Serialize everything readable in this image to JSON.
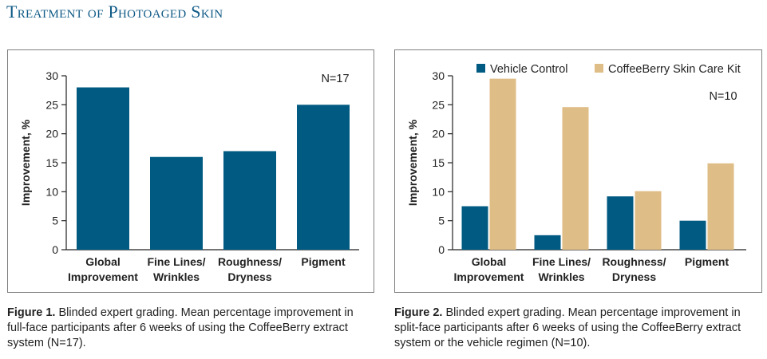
{
  "page": {
    "title": "Treatment of Photoaged Skin"
  },
  "colors": {
    "title": "#0f5a86",
    "vehicle": "#005a82",
    "coffeeberry": "#dfbd86",
    "border": "#7f7f7f"
  },
  "figure1": {
    "caption_label": "Figure 1.",
    "caption_text": " Blinded expert grading. Mean percentage improvement in full-face participants after 6 weeks of using the CoffeeBerry extract system (N=17)."
  },
  "figure2": {
    "caption_label": "Figure 2.",
    "caption_text": " Blinded expert grading. Mean percentage improvement in split-face participants after 6 weeks of using the CoffeeBerry extract system or the vehicle regimen (N=10)."
  },
  "chart_data": [
    {
      "type": "bar",
      "ylabel": "Improvement, %",
      "ylim": [
        0,
        30
      ],
      "yticks": [
        0,
        5,
        10,
        15,
        20,
        25,
        30
      ],
      "annotation": "N=17",
      "categories": [
        [
          "Global",
          "Improvement"
        ],
        [
          "Fine Lines/",
          "Wrinkles"
        ],
        [
          "Roughness/",
          "Dryness"
        ],
        [
          "Pigment"
        ]
      ],
      "series": [
        {
          "values": [
            28,
            16,
            17,
            25
          ],
          "color": "#005a82"
        }
      ],
      "legend": []
    },
    {
      "type": "bar",
      "ylabel": "Improvement, %",
      "ylim": [
        0,
        30
      ],
      "yticks": [
        0,
        5,
        10,
        15,
        20,
        25,
        30
      ],
      "annotation": "N=10",
      "legend_position": "top",
      "categories": [
        [
          "Global",
          "Improvement"
        ],
        [
          "Fine Lines/",
          "Wrinkles"
        ],
        [
          "Roughness/",
          "Dryness"
        ],
        [
          "Pigment"
        ]
      ],
      "series": [
        {
          "name": "Vehicle Control",
          "values": [
            7.5,
            2.5,
            9.2,
            5
          ],
          "color": "#005a82"
        },
        {
          "name": "CoffeeBerry Skin Care Kit",
          "values": [
            29.5,
            24.6,
            10.1,
            14.9
          ],
          "color": "#dfbd86"
        }
      ],
      "legend": [
        "Vehicle Control",
        "CoffeeBerry Skin Care Kit"
      ]
    }
  ]
}
